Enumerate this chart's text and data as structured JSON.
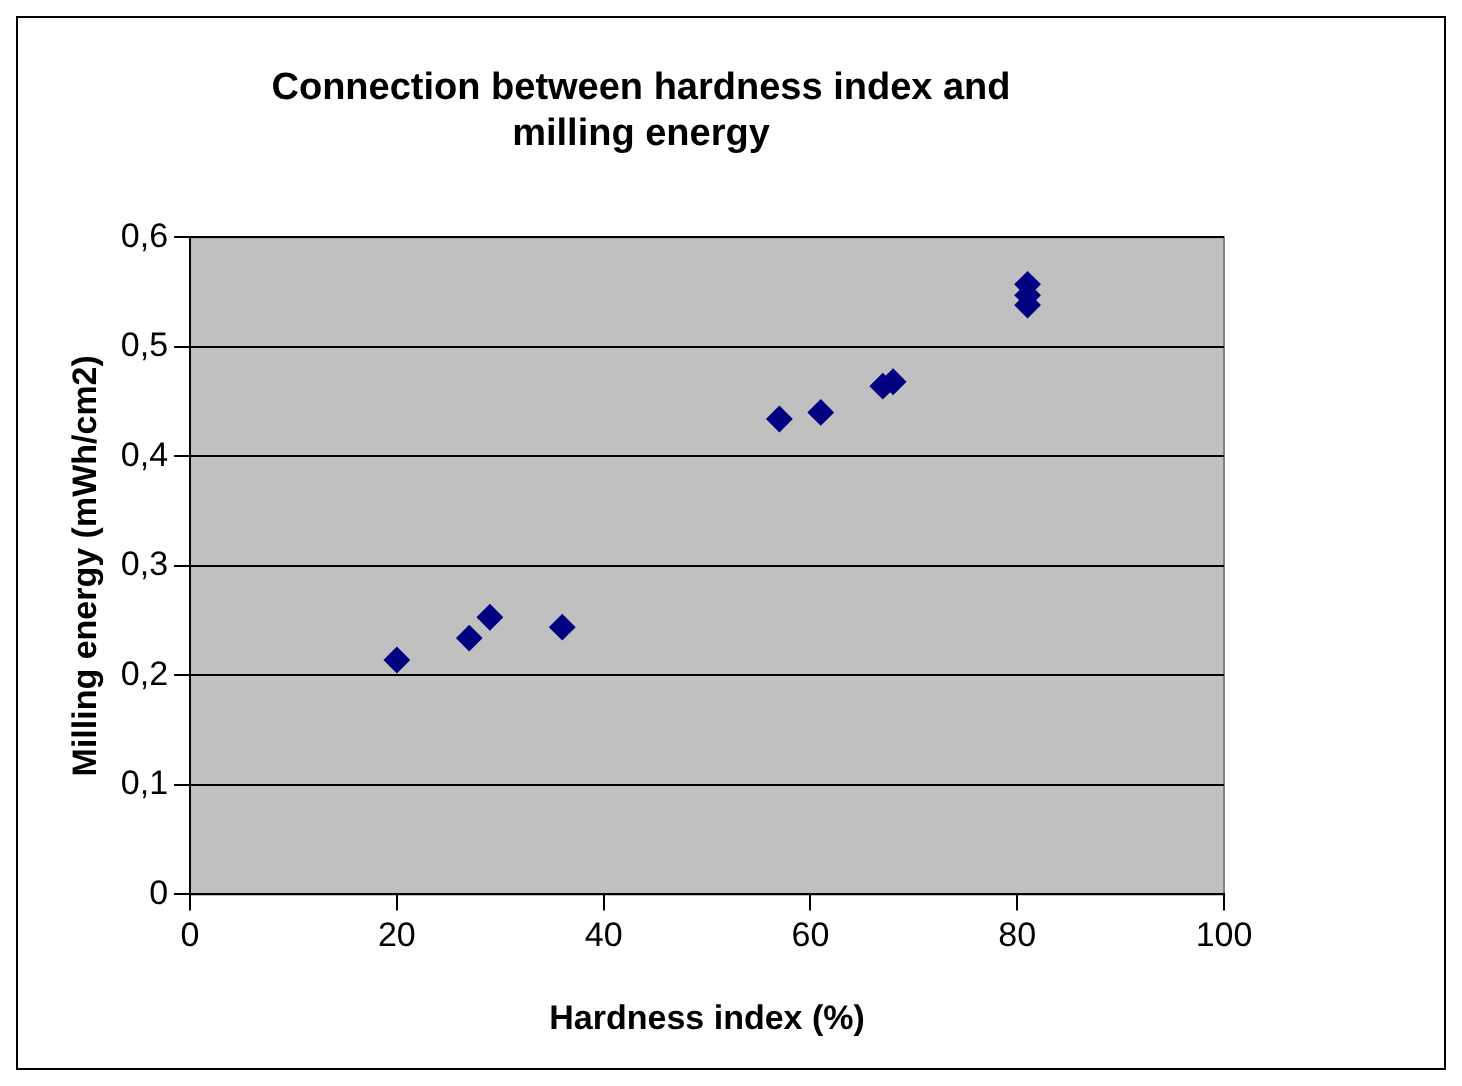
{
  "chart_data": {
    "type": "scatter",
    "title": "Connection between hardness index and milling energy",
    "xlabel": "Hardness index (%)",
    "ylabel": "Milling energy (mWh/cm2)",
    "x": [
      20,
      27,
      29,
      36,
      57,
      61,
      67,
      68,
      81,
      81,
      81
    ],
    "series": [
      {
        "color": "#000080",
        "values": [
          0.214,
          0.234,
          0.253,
          0.244,
          0.434,
          0.44,
          0.464,
          0.468,
          0.557,
          0.547,
          0.538
        ]
      }
    ],
    "xlim": [
      0,
      100
    ],
    "xticks": [
      0,
      20,
      40,
      60,
      80,
      100
    ],
    "ylim": [
      0,
      0.6
    ],
    "yticks": [
      {
        "value": 0,
        "label": "0"
      },
      {
        "value": 0.1,
        "label": "0,1"
      },
      {
        "value": 0.2,
        "label": "0,2"
      },
      {
        "value": 0.3,
        "label": "0,3"
      },
      {
        "value": 0.4,
        "label": "0,4"
      },
      {
        "value": 0.5,
        "label": "0,5"
      },
      {
        "value": 0.6,
        "label": "0,6"
      }
    ],
    "grid": "y",
    "marker": "diamond",
    "legend": false
  }
}
